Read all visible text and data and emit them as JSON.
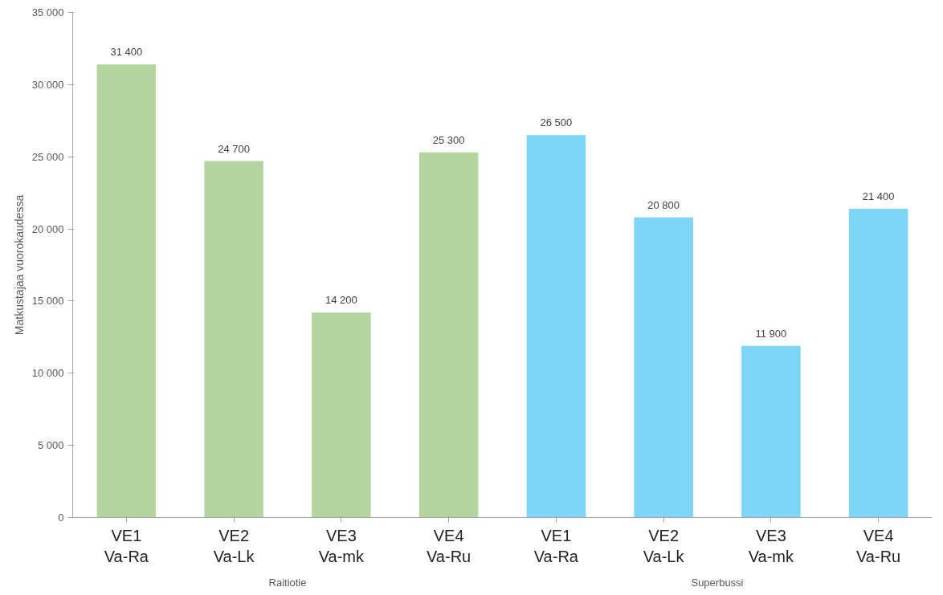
{
  "chart_data": {
    "type": "bar",
    "ylabel": "Matkustajaa vuorokaudessa",
    "categories": [
      "VE1\nVa-Ra",
      "VE2\nVa-Lk",
      "VE3\nVa-mk",
      "VE4\nVa-Ru",
      "VE1\nVa-Ra",
      "VE2\nVa-Lk",
      "VE3\nVa-mk",
      "VE4\nVa-Ru"
    ],
    "values": [
      31400,
      24700,
      14200,
      25300,
      26500,
      20800,
      11900,
      21400
    ],
    "colors": [
      "#b5d5a0",
      "#b5d5a0",
      "#b5d5a0",
      "#b5d5a0",
      "#7dd6f5",
      "#7dd6f5",
      "#7dd6f5",
      "#7dd6f5"
    ],
    "value_labels": [
      "31 400",
      "24 700",
      "14 200",
      "25 300",
      "26 500",
      "20 800",
      "11 900",
      "21 400"
    ],
    "ylim": [
      0,
      35000
    ],
    "yticks": [
      {
        "value": 0,
        "label": "0"
      },
      {
        "value": 5000,
        "label": "5 000"
      },
      {
        "value": 10000,
        "label": "10 000"
      },
      {
        "value": 15000,
        "label": "15 000"
      },
      {
        "value": 20000,
        "label": "20 000"
      },
      {
        "value": 25000,
        "label": "25 000"
      },
      {
        "value": 30000,
        "label": "30 000"
      },
      {
        "value": 35000,
        "label": "35 000"
      }
    ],
    "annotations": [
      "Raitiotie",
      "Superbussi"
    ],
    "grid": false
  }
}
